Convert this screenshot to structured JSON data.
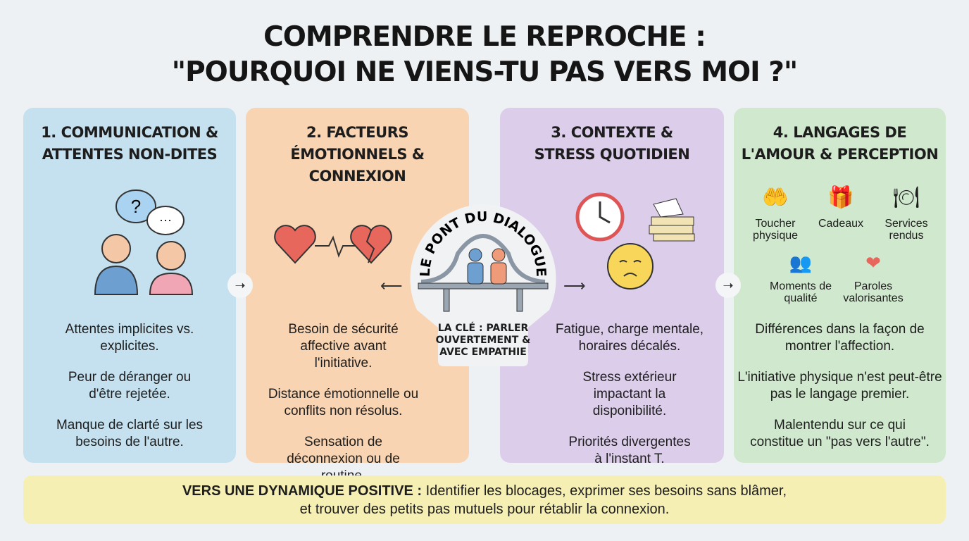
{
  "title": {
    "line1": "COMPRENDRE LE REPROCHE :",
    "line2": "\"POURQUOI NE VIENS-TU PAS VERS MOI ?\""
  },
  "panels": [
    {
      "heading": [
        "1. COMMUNICATION &",
        "ATTENTES NON-DITES"
      ],
      "color": "#c5e1ef",
      "points": [
        "Attentes implicites vs. explicites.",
        "Peur de déranger ou d'être rejetée.",
        "Manque de clarté sur les besoins de l'autre."
      ],
      "icon": "two-people-speech-bubbles-icon",
      "bubble_text": "?"
    },
    {
      "heading": [
        "2. FACTEURS",
        "ÉMOTIONNELS &",
        "CONNEXION"
      ],
      "color": "#f8d4b2",
      "points": [
        "Besoin de sécurité affective avant l'initiative.",
        "Distance émotionnelle ou conflits non résolus.",
        "Sensation de déconnexion ou de routine."
      ],
      "icon": "heart-heartbeat-broken-heart-icon"
    },
    {
      "heading": [
        "3. CONTEXTE &",
        "STRESS QUOTIDIEN"
      ],
      "color": "#dccdeb",
      "points": [
        "Fatigue, charge mentale, horaires décalés.",
        "Stress extérieur impactant la disponibilité.",
        "Priorités divergentes à l'instant T."
      ],
      "icon": "clock-papers-tired-face-icon"
    },
    {
      "heading": [
        "4. LANGAGES DE",
        "L'AMOUR & PERCEPTION"
      ],
      "color": "#d0e8cd",
      "points": [
        "Différences dans la façon de montrer l'affection.",
        "L'initiative physique n'est peut-être pas le langage premier.",
        "Malentendu sur ce qui constitue un \"pas vers l'autre\"."
      ],
      "languages": [
        "Toucher physique",
        "Cadeaux",
        "Services rendus",
        "Moments de qualité",
        "Paroles valorisantes"
      ]
    }
  ],
  "center": {
    "arc_title": "LE PONT DU DIALOGUE",
    "key": [
      "LA CLÉ : PARLER",
      "OUVERTEMENT &",
      "AVEC EMPATHIE"
    ],
    "icon": "bridge-two-people-icon"
  },
  "banner": {
    "bold": "VERS UNE DYNAMIQUE POSITIVE :",
    "text1": " Identifier les blocages, exprimer ses besoins sans blâmer,",
    "text2": "et trouver des petits pas mutuels pour rétablir la connexion."
  }
}
